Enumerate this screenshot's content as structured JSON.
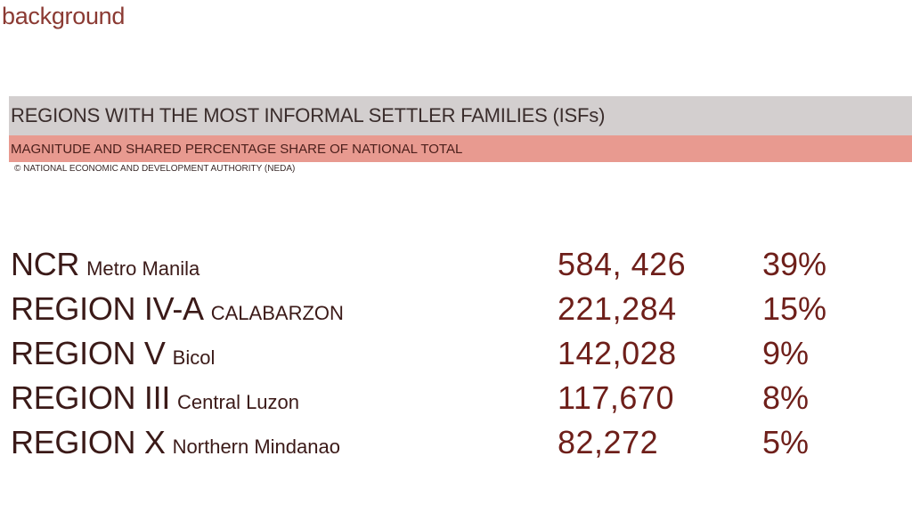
{
  "section_title": "background",
  "header": {
    "title": "REGIONS WITH THE MOST INFORMAL SETTLER FAMILIES (ISFs)",
    "subtitle": "MAGNITUDE AND SHARED PERCENTAGE SHARE OF NATIONAL TOTAL",
    "copyright": "© NATIONAL ECONOMIC AND DEVELOPMENT AUTHORITY (NEDA)"
  },
  "colors": {
    "title_band": "#d3cfcf",
    "subtitle_band": "#e89a90",
    "accent_text": "#8b3a33",
    "value_text": "#6e1f1a"
  },
  "rows": [
    {
      "code": "NCR",
      "name": "Metro Manila",
      "families": "584, 426",
      "share": "39%"
    },
    {
      "code": "REGION IV-A",
      "name": "CALABARZON",
      "families": "221,284",
      "share": "15%"
    },
    {
      "code": "REGION V",
      "name": "Bicol",
      "families": "142,028",
      "share": "9%"
    },
    {
      "code": "REGION III",
      "name": "Central Luzon",
      "families": "117,670",
      "share": "8%"
    },
    {
      "code": "REGION X",
      "name": "Northern Mindanao",
      "families": "82,272",
      "share": "5%"
    }
  ]
}
